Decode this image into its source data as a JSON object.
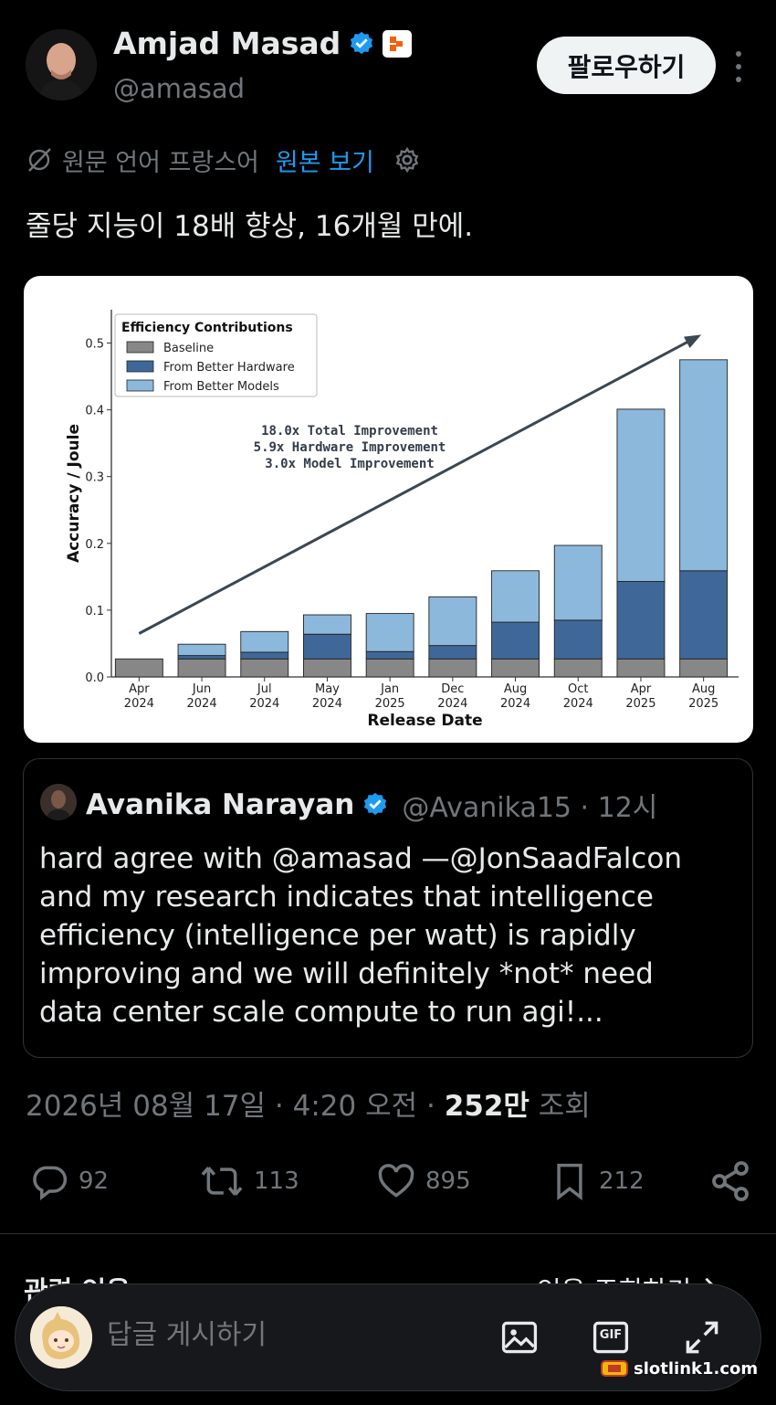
{
  "author": {
    "name": "Amjad Masad",
    "handle": "@amasad",
    "follow_label": "팔로우하기"
  },
  "translation": {
    "label": "원문 언어 프랑스어",
    "link": "원본 보기"
  },
  "tweet_text": "줄당 지능이 18배 향상, 16개월 만에.",
  "chart_data": {
    "type": "bar",
    "stacked": true,
    "categories": [
      "Apr\n2024",
      "Jun\n2024",
      "Jul\n2024",
      "May\n2024",
      "Jan\n2025",
      "Dec\n2024",
      "Aug\n2024",
      "Oct\n2024",
      "Apr\n2025",
      "Aug\n2025"
    ],
    "category_lines": [
      [
        "Apr",
        "2024"
      ],
      [
        "Jun",
        "2024"
      ],
      [
        "Jul",
        "2024"
      ],
      [
        "May",
        "2024"
      ],
      [
        "Jan",
        "2025"
      ],
      [
        "Dec",
        "2024"
      ],
      [
        "Aug",
        "2024"
      ],
      [
        "Oct",
        "2024"
      ],
      [
        "Apr",
        "2025"
      ],
      [
        "Aug",
        "2025"
      ]
    ],
    "series": [
      {
        "name": "Baseline",
        "color": "#878787",
        "values": [
          0.027,
          0.027,
          0.027,
          0.027,
          0.027,
          0.027,
          0.027,
          0.027,
          0.027,
          0.027
        ]
      },
      {
        "name": "From Better Hardware",
        "color": "#3f6899",
        "values": [
          0.0,
          0.005,
          0.01,
          0.037,
          0.011,
          0.02,
          0.055,
          0.058,
          0.116,
          0.132
        ]
      },
      {
        "name": "From Better Models",
        "color": "#8cb8dc",
        "values": [
          0.0,
          0.017,
          0.031,
          0.029,
          0.057,
          0.073,
          0.077,
          0.112,
          0.258,
          0.316
        ]
      }
    ],
    "legend_title": "Efficiency Contributions",
    "legend_position": "top-left",
    "xlabel": "Release Date",
    "ylabel": "Accuracy / Joule",
    "ylim": [
      0,
      0.55
    ],
    "yticks": [
      "0.0",
      "0.1",
      "0.2",
      "0.3",
      "0.4",
      "0.5"
    ],
    "ytick_values": [
      0.0,
      0.1,
      0.2,
      0.3,
      0.4,
      0.5
    ],
    "annotations": [
      "18.0x Total Improvement",
      "5.9x Hardware Improvement",
      "3.0x Model Improvement"
    ],
    "trend_arrow": {
      "from_value": 0.065,
      "to_value": 0.51
    }
  },
  "quote": {
    "name": "Avanika Narayan",
    "handle": "@Avanika15 · 12시",
    "lines": [
      "hard agree with @amasad —@JonSaadFalcon",
      "and my research indicates that intelligence",
      "efficiency (intelligence per watt) is rapidly",
      "improving and we will definitely *not* need",
      "data center scale compute to run agi!..."
    ]
  },
  "meta": {
    "datetime": "2026년 08월 17일 · 4:20 오전 · ",
    "views_count": "252만",
    "views_label": " 조회"
  },
  "actions": {
    "replies": "92",
    "reposts": "113",
    "likes": "895",
    "bookmarks": "212"
  },
  "related": {
    "left": "관련 인용",
    "right": "인용 조회하기"
  },
  "reply": {
    "placeholder": "답글 게시하기",
    "gif_label": "GIF"
  },
  "watermark": "slotlink1.com",
  "colors": {
    "accent": "#1d9bf0",
    "muted": "#71767b",
    "text": "#e7e9ea",
    "background": "#000000"
  }
}
